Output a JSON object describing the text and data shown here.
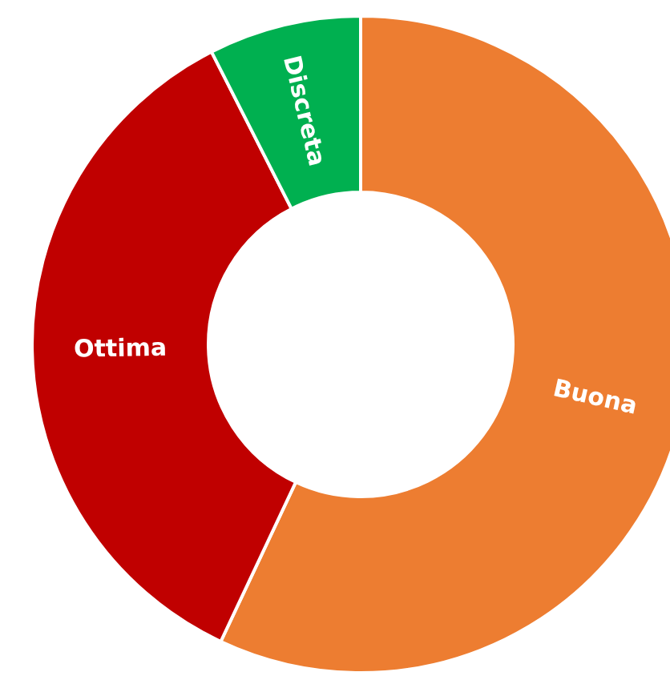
{
  "chart_data": {
    "type": "donut",
    "categories": [
      "Buona",
      "Ottima",
      "Discreta"
    ],
    "values": [
      57,
      35.5,
      7.5
    ],
    "colors": [
      "#ed7d31",
      "#c00000",
      "#00b050"
    ]
  }
}
